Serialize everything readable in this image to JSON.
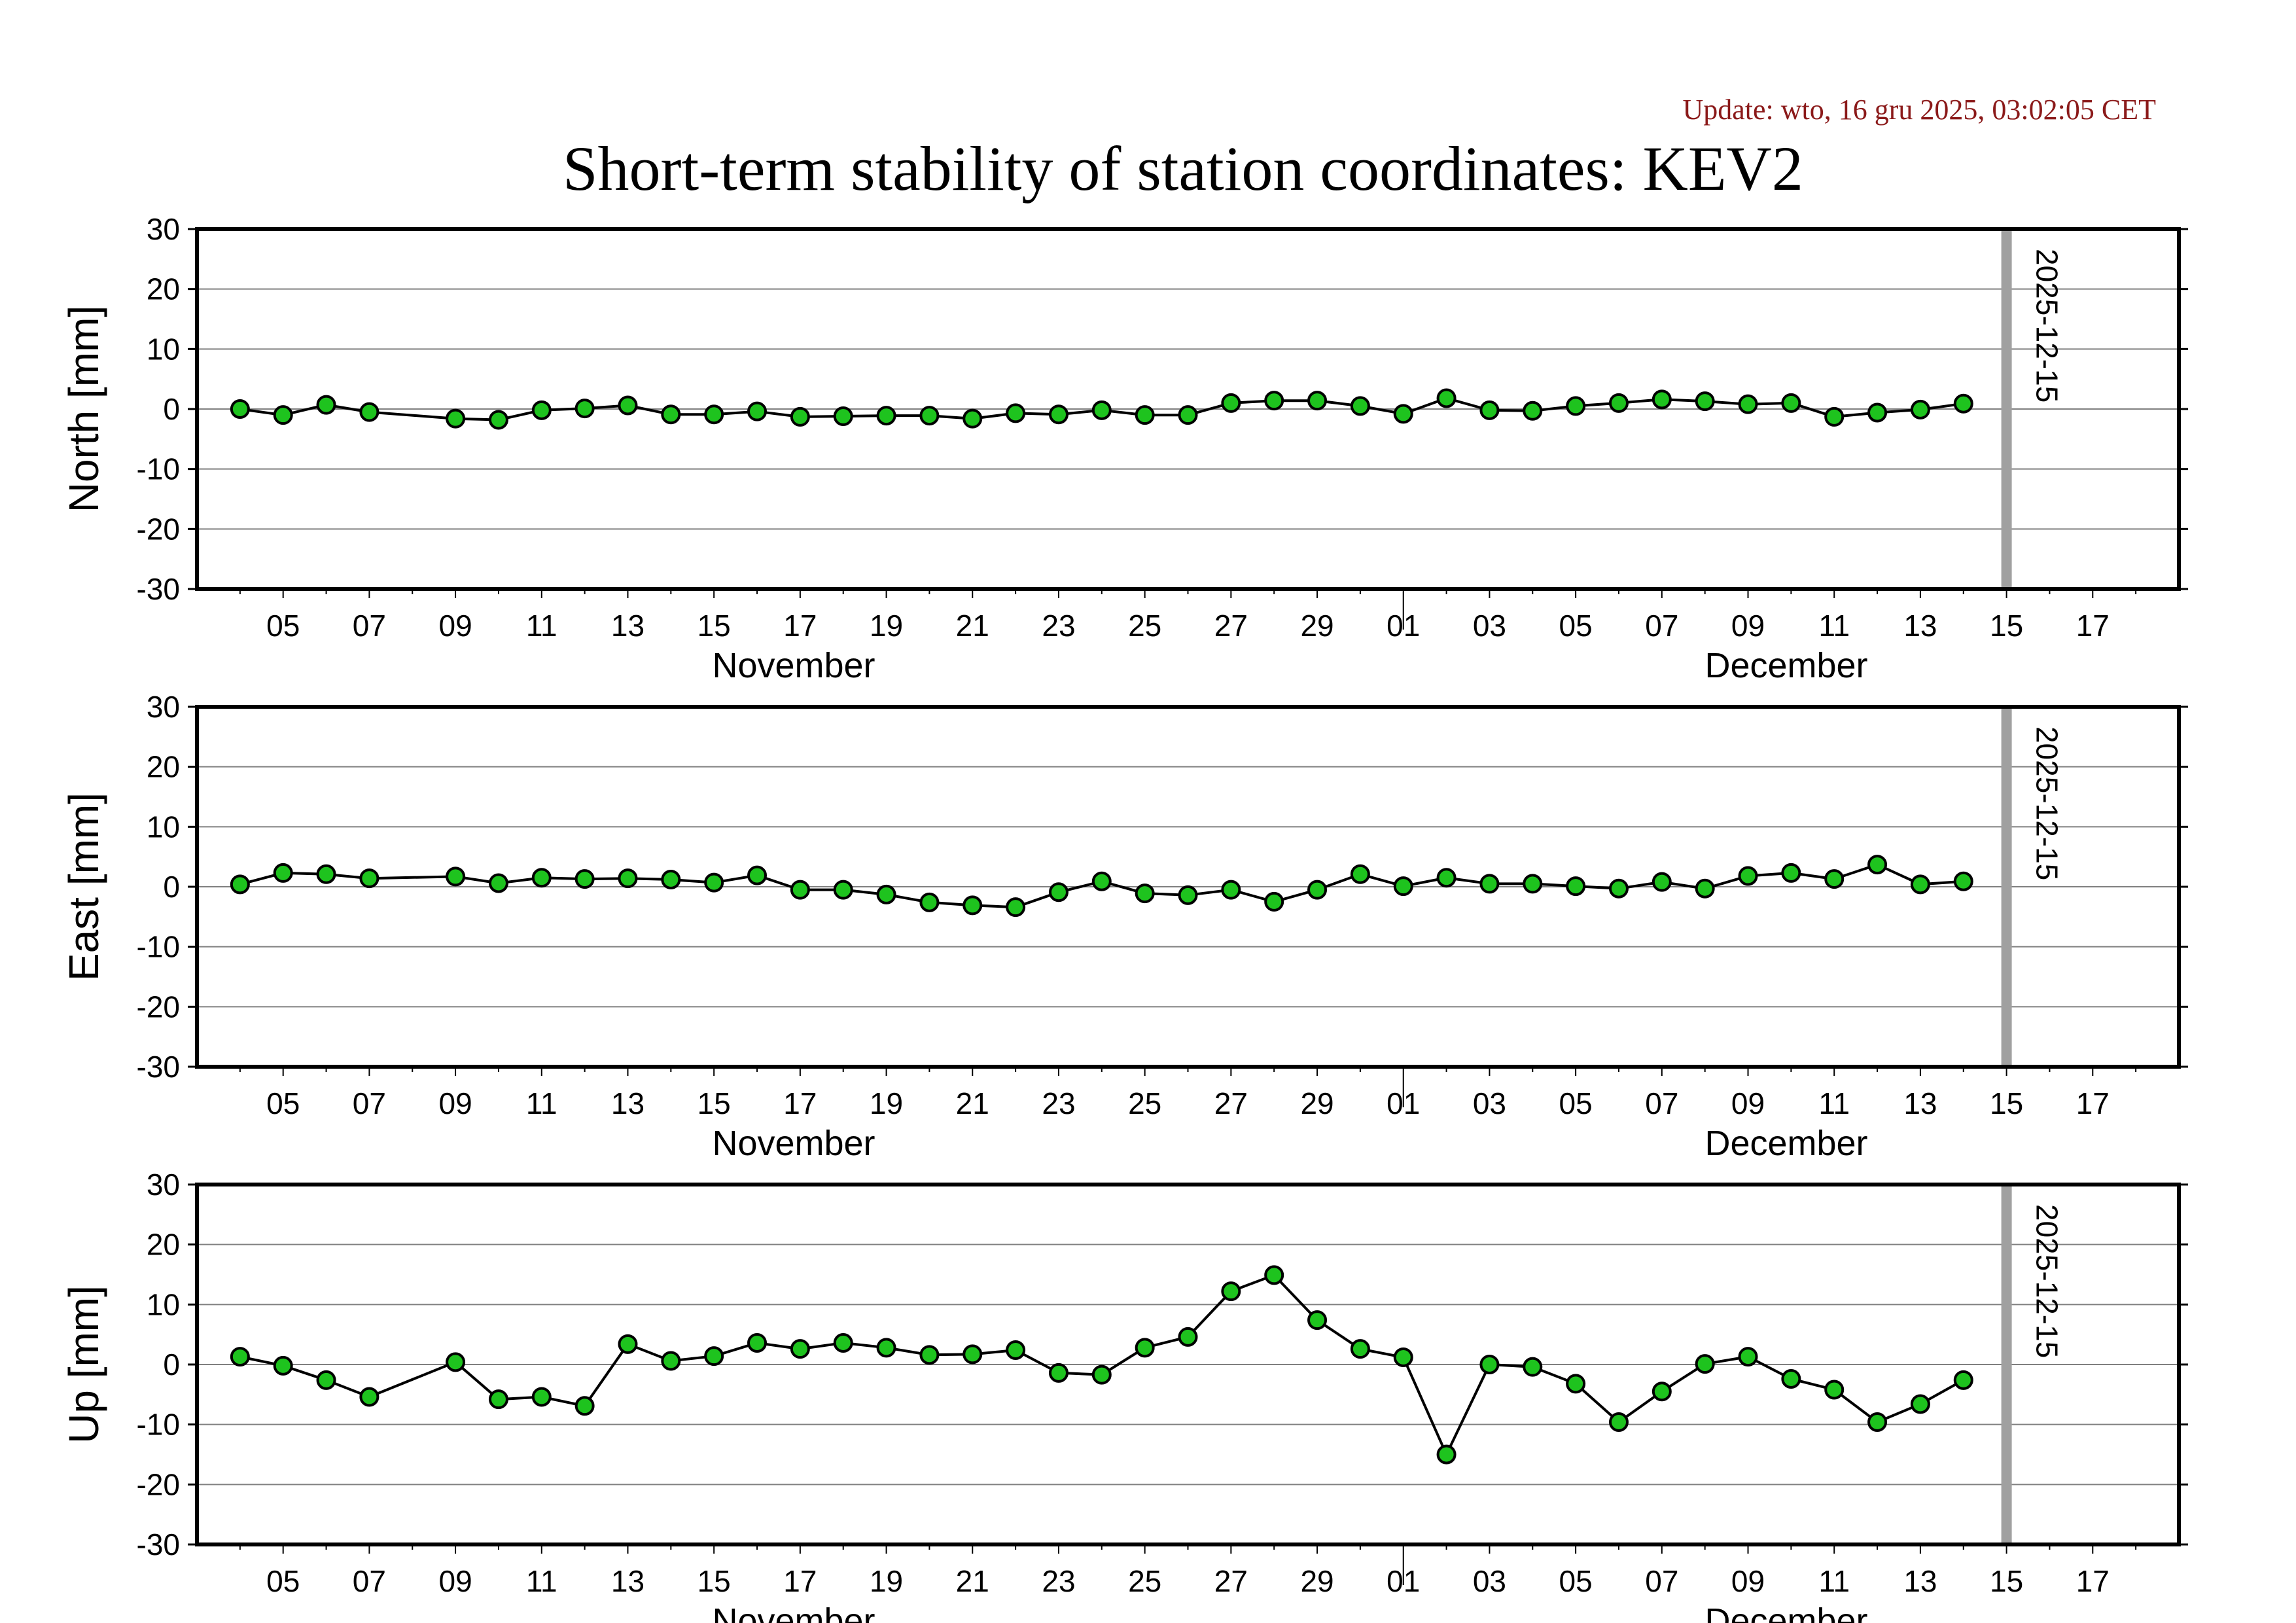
{
  "update_text": "Update: wto, 16 gru 2025, 03:02:05 CET",
  "title": "Short-term stability of station coordinates: KEV2",
  "colors": {
    "update_text": "#8b1a1a",
    "marker_fill": "#1ec31e",
    "marker_stroke": "#000000",
    "line": "#000000",
    "grid": "#808080",
    "marker_line": "#a0a0a0"
  },
  "marker_label": "2025-12-15",
  "month_labels": [
    "November",
    "December"
  ],
  "x_tick_labels": [
    "05",
    "07",
    "09",
    "11",
    "13",
    "15",
    "17",
    "19",
    "21",
    "23",
    "25",
    "27",
    "29",
    "01",
    "03",
    "05",
    "07",
    "09",
    "11",
    "13",
    "15",
    "17"
  ],
  "chart_data": [
    {
      "type": "line",
      "ylabel": "North [mm]",
      "ylim": [
        -30,
        30
      ],
      "yticks": [
        "30",
        "20",
        "10",
        "0",
        "-10",
        "-20",
        "-30"
      ],
      "xlim": [
        "2025-11-03",
        "2025-12-19"
      ],
      "grid": true,
      "vertical_marker": "2025-12-15",
      "series": [
        {
          "x": [
            "2025-11-04",
            "2025-11-05",
            "2025-11-06",
            "2025-11-07",
            "2025-11-09",
            "2025-11-10",
            "2025-11-11",
            "2025-11-12",
            "2025-11-13",
            "2025-11-14",
            "2025-11-15",
            "2025-11-16",
            "2025-11-17",
            "2025-11-18",
            "2025-11-19",
            "2025-11-20",
            "2025-11-21",
            "2025-11-22",
            "2025-11-23",
            "2025-11-24",
            "2025-11-25",
            "2025-11-26",
            "2025-11-27",
            "2025-11-28",
            "2025-11-29",
            "2025-11-30",
            "2025-12-01",
            "2025-12-02",
            "2025-12-03",
            "2025-12-04",
            "2025-12-05",
            "2025-12-06",
            "2025-12-07",
            "2025-12-08",
            "2025-12-09",
            "2025-12-10",
            "2025-12-11",
            "2025-12-12",
            "2025-12-13",
            "2025-12-14"
          ],
          "values": [
            0.0,
            -1.0,
            0.7,
            -0.5,
            -1.6,
            -1.8,
            -0.2,
            0.1,
            0.6,
            -0.9,
            -0.9,
            -0.4,
            -1.3,
            -1.2,
            -1.1,
            -1.1,
            -1.6,
            -0.7,
            -0.9,
            -0.2,
            -1.0,
            -1.0,
            1.0,
            1.4,
            1.4,
            0.5,
            -0.8,
            1.8,
            -0.2,
            -0.3,
            0.5,
            1.0,
            1.6,
            1.3,
            0.8,
            1.0,
            -1.3,
            -0.6,
            -0.1,
            0.9
          ]
        }
      ]
    },
    {
      "type": "line",
      "ylabel": "East [mm]",
      "ylim": [
        -30,
        30
      ],
      "yticks": [
        "30",
        "20",
        "10",
        "0",
        "-10",
        "-20",
        "-30"
      ],
      "xlim": [
        "2025-11-03",
        "2025-12-19"
      ],
      "grid": true,
      "vertical_marker": "2025-12-15",
      "series": [
        {
          "x": [
            "2025-11-04",
            "2025-11-05",
            "2025-11-06",
            "2025-11-07",
            "2025-11-09",
            "2025-11-10",
            "2025-11-11",
            "2025-11-12",
            "2025-11-13",
            "2025-11-14",
            "2025-11-15",
            "2025-11-16",
            "2025-11-17",
            "2025-11-18",
            "2025-11-19",
            "2025-11-20",
            "2025-11-21",
            "2025-11-22",
            "2025-11-23",
            "2025-11-24",
            "2025-11-25",
            "2025-11-26",
            "2025-11-27",
            "2025-11-28",
            "2025-11-29",
            "2025-11-30",
            "2025-12-01",
            "2025-12-02",
            "2025-12-03",
            "2025-12-04",
            "2025-12-05",
            "2025-12-06",
            "2025-12-07",
            "2025-12-08",
            "2025-12-09",
            "2025-12-10",
            "2025-12-11",
            "2025-12-12",
            "2025-12-13",
            "2025-12-14"
          ],
          "values": [
            0.4,
            2.3,
            2.1,
            1.4,
            1.7,
            0.6,
            1.5,
            1.3,
            1.4,
            1.2,
            0.7,
            1.9,
            -0.5,
            -0.5,
            -1.3,
            -2.6,
            -3.1,
            -3.4,
            -0.9,
            0.9,
            -1.1,
            -1.4,
            -0.5,
            -2.5,
            -0.5,
            2.1,
            0.1,
            1.5,
            0.5,
            0.5,
            0.1,
            -0.3,
            0.8,
            -0.3,
            1.8,
            2.3,
            1.3,
            3.7,
            0.4,
            0.9
          ]
        }
      ]
    },
    {
      "type": "line",
      "ylabel": "Up [mm]",
      "ylim": [
        -30,
        30
      ],
      "yticks": [
        "30",
        "20",
        "10",
        "0",
        "-10",
        "-20",
        "-30"
      ],
      "xlim": [
        "2025-11-03",
        "2025-12-19"
      ],
      "grid": true,
      "vertical_marker": "2025-12-15",
      "series": [
        {
          "x": [
            "2025-11-04",
            "2025-11-05",
            "2025-11-06",
            "2025-11-07",
            "2025-11-09",
            "2025-11-10",
            "2025-11-11",
            "2025-11-12",
            "2025-11-13",
            "2025-11-14",
            "2025-11-15",
            "2025-11-16",
            "2025-11-17",
            "2025-11-18",
            "2025-11-19",
            "2025-11-20",
            "2025-11-21",
            "2025-11-22",
            "2025-11-23",
            "2025-11-24",
            "2025-11-25",
            "2025-11-26",
            "2025-11-27",
            "2025-11-28",
            "2025-11-29",
            "2025-11-30",
            "2025-12-01",
            "2025-12-02",
            "2025-12-03",
            "2025-12-04",
            "2025-12-05",
            "2025-12-06",
            "2025-12-07",
            "2025-12-08",
            "2025-12-09",
            "2025-12-10",
            "2025-12-11",
            "2025-12-12",
            "2025-12-13",
            "2025-12-14"
          ],
          "values": [
            1.3,
            -0.2,
            -2.6,
            -5.4,
            0.4,
            -5.8,
            -5.4,
            -6.9,
            3.4,
            0.6,
            1.4,
            3.6,
            2.6,
            3.6,
            2.8,
            1.6,
            1.7,
            2.4,
            -1.4,
            -1.7,
            2.8,
            4.6,
            12.2,
            14.9,
            7.4,
            2.6,
            1.2,
            -15.0,
            0.0,
            -0.4,
            -3.2,
            -9.6,
            -4.5,
            0.1,
            1.3,
            -2.4,
            -4.2,
            -9.6,
            -6.6,
            -2.6
          ]
        }
      ]
    }
  ]
}
